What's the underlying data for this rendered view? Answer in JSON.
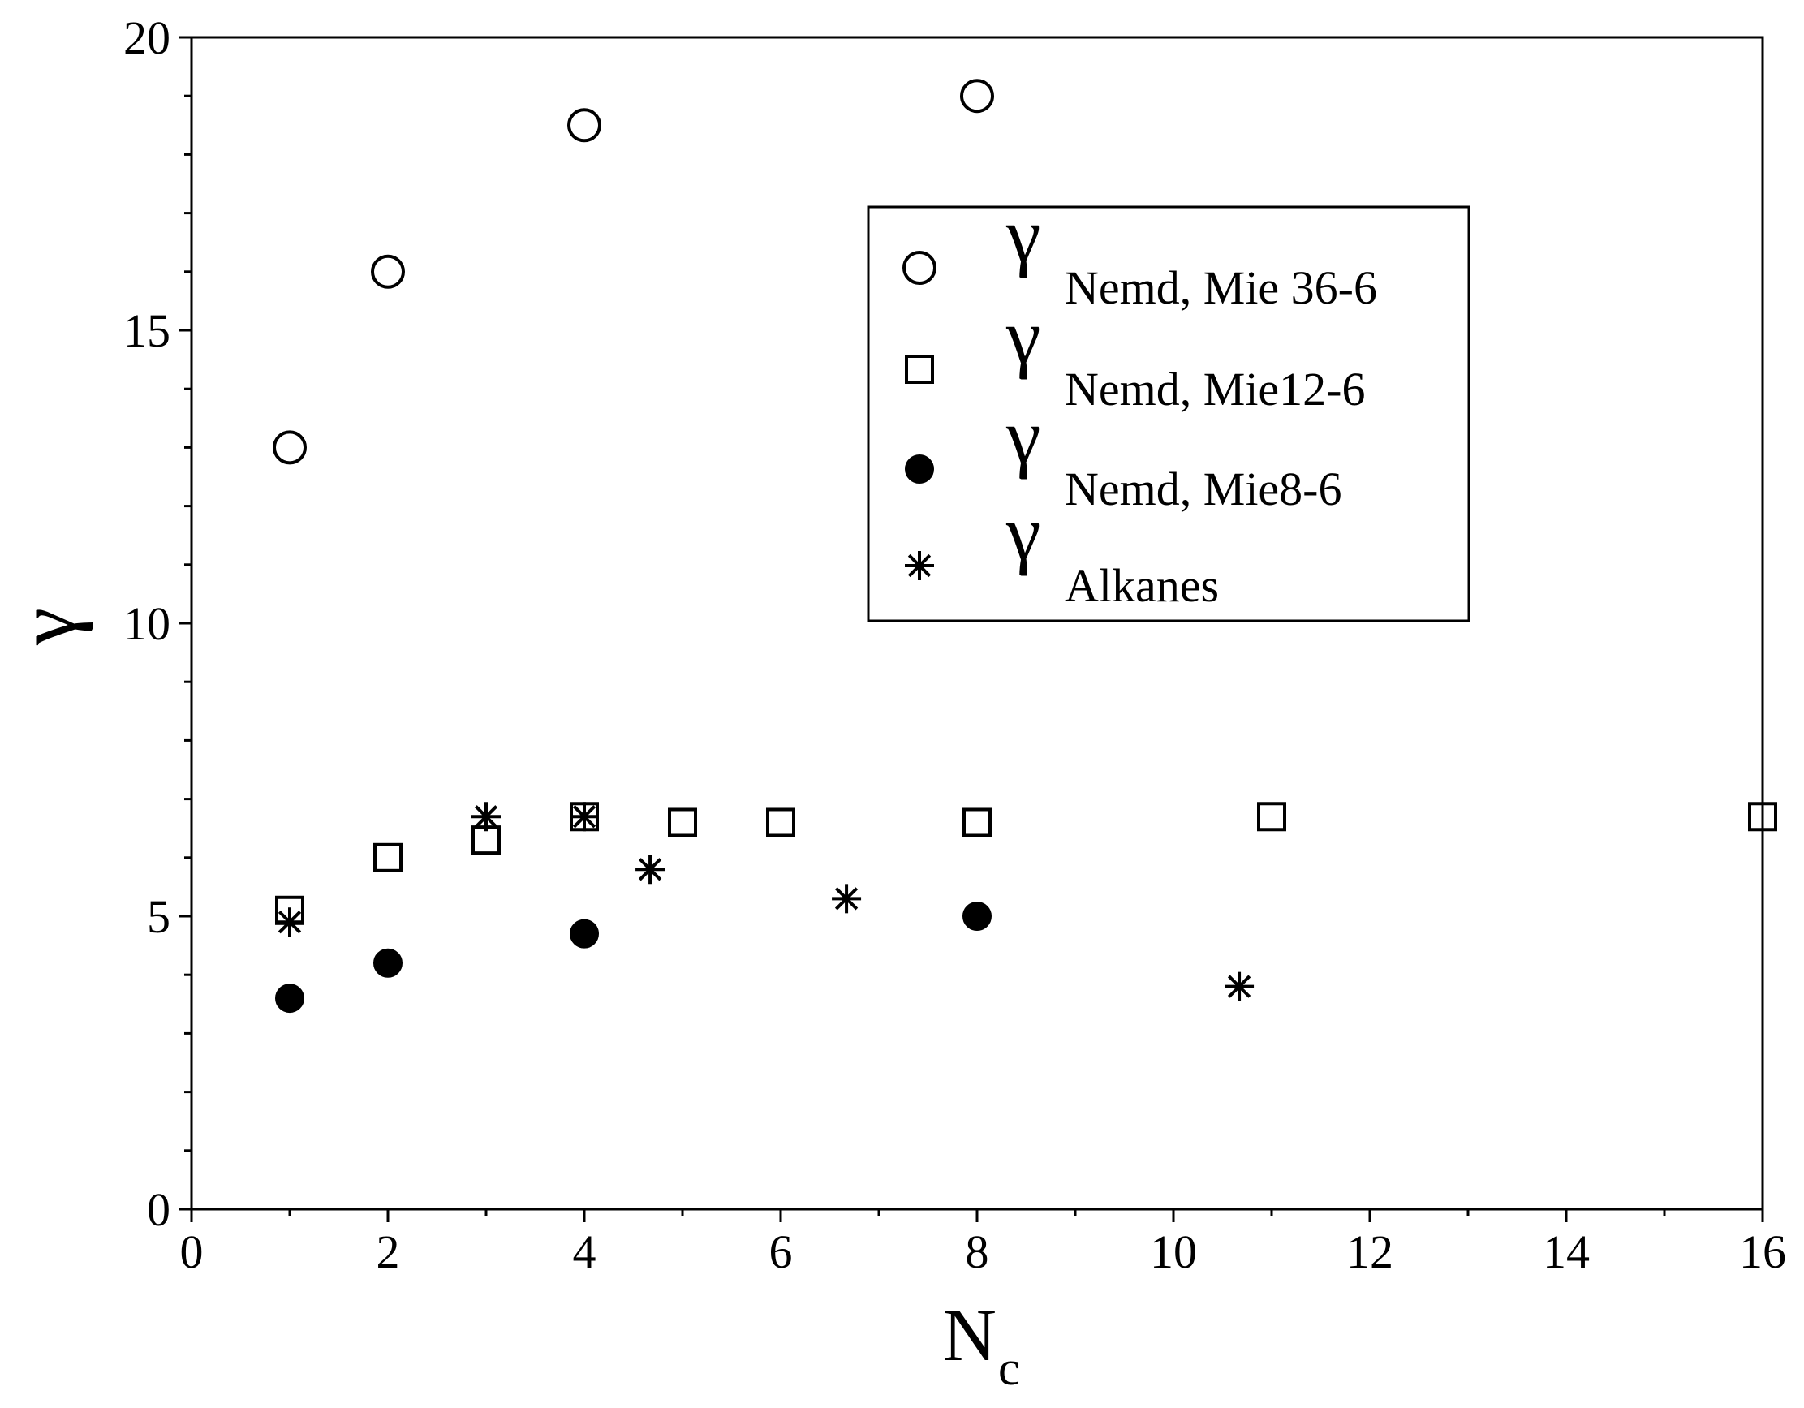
{
  "chart_data": {
    "type": "scatter",
    "xlabel": "N",
    "xlabel_sub": "c",
    "ylabel": "γ",
    "xlim": [
      0,
      16
    ],
    "ylim": [
      0,
      20
    ],
    "xticks": [
      "0",
      "2",
      "4",
      "6",
      "8",
      "10",
      "12",
      "14",
      "16"
    ],
    "yticks": [
      "0",
      "5",
      "10",
      "15",
      "20"
    ],
    "grid": false,
    "legend_position": "top-right",
    "series": [
      {
        "name": "γ",
        "name_sub": "Nemd, Mie 36-6",
        "marker": "open-circle",
        "x": [
          1,
          2,
          4,
          8
        ],
        "y": [
          13,
          16,
          18.5,
          19
        ]
      },
      {
        "name": "γ",
        "name_sub": "Nemd, Mie12-6",
        "marker": "open-square",
        "x": [
          1,
          2,
          3,
          4,
          5,
          6,
          8,
          11,
          16
        ],
        "y": [
          5.1,
          6.0,
          6.3,
          6.7,
          6.6,
          6.6,
          6.6,
          6.7,
          6.7
        ]
      },
      {
        "name": "γ",
        "name_sub": "Nemd, Mie8-6",
        "marker": "filled-circle",
        "x": [
          1,
          2,
          4,
          8
        ],
        "y": [
          3.6,
          4.2,
          4.7,
          5.0
        ]
      },
      {
        "name": "γ",
        "name_sub": "Alkanes",
        "marker": "asterisk",
        "x": [
          1,
          3,
          4,
          4.67,
          6.67,
          10.67
        ],
        "y": [
          4.9,
          6.7,
          6.7,
          5.8,
          5.3,
          3.8
        ]
      }
    ]
  }
}
